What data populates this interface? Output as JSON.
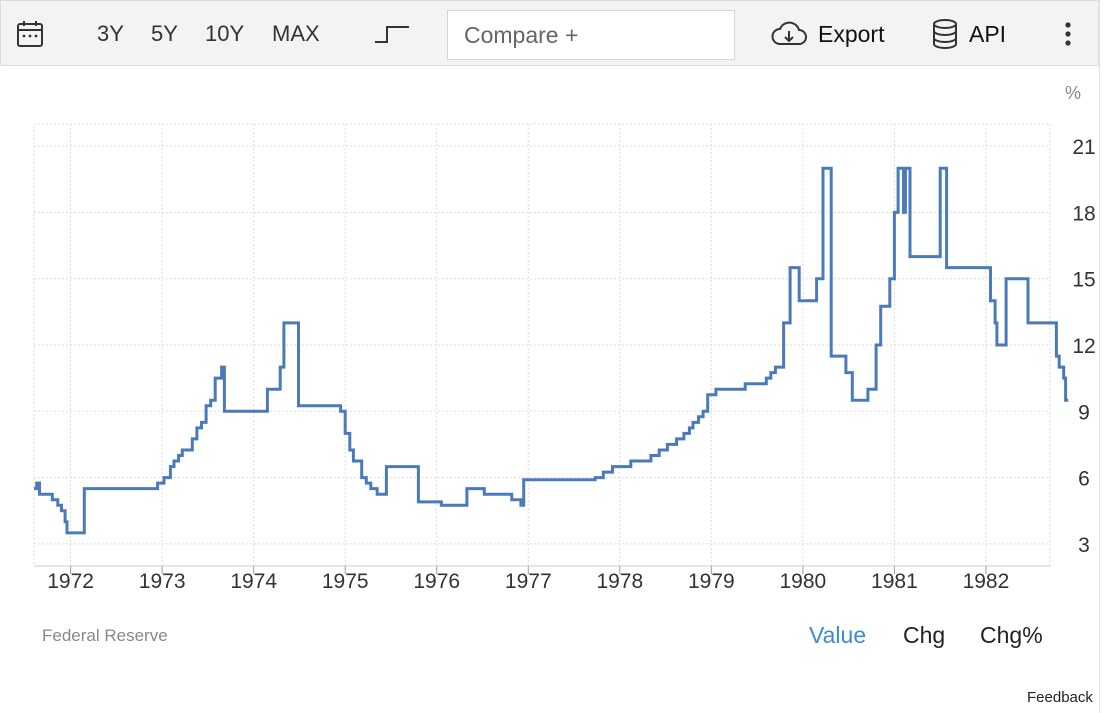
{
  "toolbar": {
    "ranges": [
      "3Y",
      "5Y",
      "10Y",
      "MAX"
    ],
    "compare_placeholder": "Compare +",
    "export_label": "Export",
    "api_label": "API"
  },
  "colors": {
    "line": "#4a7ab8",
    "active": "#3a8bd8",
    "grid": "#dddddd"
  },
  "icons": [
    "calendar-icon",
    "step-chart-icon",
    "cloud-download-icon",
    "database-icon",
    "more-vertical-icon"
  ],
  "chart_data": {
    "type": "line",
    "step": true,
    "unit": "%",
    "x_ticks": [
      "1972",
      "1973",
      "1974",
      "1975",
      "1976",
      "1977",
      "1978",
      "1979",
      "1980",
      "1981",
      "1982"
    ],
    "y_ticks": [
      3,
      6,
      9,
      12,
      15,
      18,
      21
    ],
    "xlim": [
      1971.6,
      1982.7
    ],
    "ylim": [
      2,
      22
    ],
    "grid": true,
    "axis_side": "right",
    "series": [
      {
        "points": [
          [
            1971.6,
            5.5
          ],
          [
            1971.63,
            5.75
          ],
          [
            1971.66,
            5.25
          ],
          [
            1971.8,
            5.0
          ],
          [
            1971.86,
            4.75
          ],
          [
            1971.9,
            4.5
          ],
          [
            1971.94,
            4.0
          ],
          [
            1971.96,
            3.5
          ],
          [
            1972.15,
            5.5
          ],
          [
            1972.95,
            5.75
          ],
          [
            1973.02,
            6.0
          ],
          [
            1973.09,
            6.5
          ],
          [
            1973.13,
            6.75
          ],
          [
            1973.18,
            7.0
          ],
          [
            1973.22,
            7.25
          ],
          [
            1973.33,
            7.75
          ],
          [
            1973.38,
            8.25
          ],
          [
            1973.43,
            8.5
          ],
          [
            1973.48,
            9.25
          ],
          [
            1973.53,
            9.5
          ],
          [
            1973.58,
            10.5
          ],
          [
            1973.65,
            11.0
          ],
          [
            1973.68,
            9.0
          ],
          [
            1974.15,
            10.0
          ],
          [
            1974.29,
            11.0
          ],
          [
            1974.33,
            13.0
          ],
          [
            1974.49,
            9.25
          ],
          [
            1974.95,
            9.0
          ],
          [
            1975.0,
            8.0
          ],
          [
            1975.05,
            7.25
          ],
          [
            1975.09,
            6.75
          ],
          [
            1975.18,
            6.0
          ],
          [
            1975.23,
            5.75
          ],
          [
            1975.28,
            5.5
          ],
          [
            1975.35,
            5.25
          ],
          [
            1975.45,
            6.5
          ],
          [
            1975.8,
            4.9
          ],
          [
            1976.05,
            4.75
          ],
          [
            1976.33,
            5.5
          ],
          [
            1976.52,
            5.25
          ],
          [
            1976.82,
            5.0
          ],
          [
            1976.92,
            4.75
          ],
          [
            1976.95,
            5.9
          ],
          [
            1977.73,
            6.0
          ],
          [
            1977.82,
            6.25
          ],
          [
            1977.92,
            6.5
          ],
          [
            1978.12,
            6.75
          ],
          [
            1978.34,
            7.0
          ],
          [
            1978.43,
            7.25
          ],
          [
            1978.52,
            7.5
          ],
          [
            1978.62,
            7.75
          ],
          [
            1978.7,
            8.0
          ],
          [
            1978.76,
            8.25
          ],
          [
            1978.8,
            8.5
          ],
          [
            1978.86,
            8.75
          ],
          [
            1978.91,
            9.0
          ],
          [
            1978.96,
            9.75
          ],
          [
            1979.05,
            10.0
          ],
          [
            1979.37,
            10.25
          ],
          [
            1979.6,
            10.5
          ],
          [
            1979.65,
            10.75
          ],
          [
            1979.7,
            11.0
          ],
          [
            1979.79,
            13.0
          ],
          [
            1979.86,
            15.5
          ],
          [
            1979.96,
            14.0
          ],
          [
            1980.15,
            15.0
          ],
          [
            1980.22,
            20.0
          ],
          [
            1980.31,
            11.5
          ],
          [
            1980.47,
            10.75
          ],
          [
            1980.54,
            9.5
          ],
          [
            1980.71,
            10.0
          ],
          [
            1980.8,
            12.0
          ],
          [
            1980.85,
            13.75
          ],
          [
            1980.95,
            15.0
          ],
          [
            1981.0,
            18.0
          ],
          [
            1981.04,
            20.0
          ],
          [
            1981.1,
            18.0
          ],
          [
            1981.12,
            20.0
          ],
          [
            1981.17,
            16.0
          ],
          [
            1981.5,
            20.0
          ],
          [
            1981.57,
            15.5
          ],
          [
            1982.05,
            14.0
          ],
          [
            1982.1,
            13.0
          ],
          [
            1982.12,
            12.0
          ],
          [
            1982.22,
            15.0
          ],
          [
            1982.46,
            13.0
          ],
          [
            1982.77,
            11.5
          ],
          [
            1982.8,
            11.0
          ],
          [
            1982.85,
            10.5
          ],
          [
            1982.87,
            9.5
          ],
          [
            1982.9,
            9.5
          ]
        ]
      }
    ]
  },
  "footer": {
    "source": "Federal Reserve",
    "views": [
      "Value",
      "Chg",
      "Chg%"
    ],
    "feedback": "Feedback"
  }
}
